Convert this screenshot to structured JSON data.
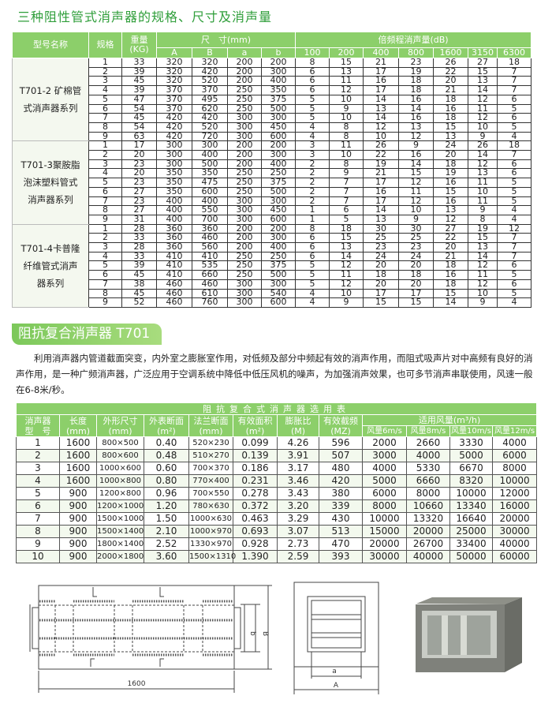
{
  "section1": {
    "title": "三种阻性管式消声器的规格、尺寸及消声量",
    "headers": {
      "model": "型号名称",
      "spec": "规格",
      "weight": "重量",
      "weight_unit": "(KG)",
      "dims": "尺　寸(mm)",
      "dim_cols": [
        "A",
        "B",
        "a",
        "b"
      ],
      "octave": "倍频程消声量(dB)",
      "freq_cols": [
        "100",
        "200",
        "400",
        "800",
        "1600",
        "3150",
        "6300"
      ]
    },
    "groups": [
      {
        "name_lines": [
          "T701-2 矿棉管",
          "式消声器系列"
        ],
        "rows": [
          [
            "1",
            "33",
            "320",
            "320",
            "200",
            "200",
            "8",
            "15",
            "21",
            "23",
            "26",
            "27",
            "18"
          ],
          [
            "2",
            "39",
            "320",
            "420",
            "200",
            "300",
            "6",
            "13",
            "17",
            "19",
            "22",
            "15",
            "7"
          ],
          [
            "3",
            "45",
            "320",
            "520",
            "200",
            "400",
            "6",
            "11",
            "16",
            "18",
            "20",
            "13",
            "7"
          ],
          [
            "4",
            "39",
            "370",
            "370",
            "250",
            "350",
            "6",
            "12",
            "17",
            "18",
            "21",
            "14",
            "7"
          ],
          [
            "5",
            "47",
            "370",
            "495",
            "250",
            "375",
            "5",
            "10",
            "14",
            "16",
            "18",
            "12",
            "6"
          ],
          [
            "6",
            "54",
            "370",
            "620",
            "250",
            "500",
            "5",
            "9",
            "13",
            "14",
            "16",
            "11",
            "5"
          ],
          [
            "7",
            "45",
            "420",
            "420",
            "300",
            "300",
            "5",
            "10",
            "14",
            "16",
            "18",
            "12",
            "6"
          ],
          [
            "8",
            "54",
            "420",
            "520",
            "300",
            "450",
            "4",
            "8",
            "12",
            "13",
            "15",
            "10",
            "5"
          ],
          [
            "9",
            "63",
            "420",
            "720",
            "300",
            "600",
            "4",
            "8",
            "10",
            "12",
            "13",
            "9",
            "4"
          ]
        ]
      },
      {
        "name_lines": [
          "T701-3聚胺脂",
          "泡沫塑料管式",
          "消声器系列"
        ],
        "rows": [
          [
            "1",
            "17",
            "300",
            "300",
            "200",
            "200",
            "3",
            "11",
            "26",
            "9",
            "24",
            "26",
            "18"
          ],
          [
            "2",
            "20",
            "300",
            "400",
            "200",
            "300",
            "3",
            "10",
            "22",
            "16",
            "20",
            "14",
            "7"
          ],
          [
            "3",
            "23",
            "300",
            "500",
            "200",
            "400",
            "2",
            "8",
            "19",
            "14",
            "18",
            "12",
            "6"
          ],
          [
            "4",
            "20",
            "350",
            "350",
            "250",
            "250",
            "2",
            "9",
            "21",
            "15",
            "19",
            "13",
            "6"
          ],
          [
            "5",
            "23",
            "350",
            "475",
            "250",
            "375",
            "2",
            "7",
            "17",
            "12",
            "16",
            "11",
            "5"
          ],
          [
            "6",
            "27",
            "350",
            "600",
            "250",
            "500",
            "2",
            "7",
            "16",
            "11",
            "15",
            "10",
            "5"
          ],
          [
            "7",
            "23",
            "400",
            "400",
            "300",
            "300",
            "2",
            "7",
            "17",
            "12",
            "16",
            "11",
            "5"
          ],
          [
            "8",
            "27",
            "400",
            "550",
            "300",
            "450",
            "1",
            "6",
            "14",
            "10",
            "13",
            "9",
            "4"
          ],
          [
            "9",
            "31",
            "400",
            "700",
            "300",
            "600",
            "1",
            "5",
            "13",
            "9",
            "12",
            "8",
            "4"
          ]
        ]
      },
      {
        "name_lines": [
          "T701-4卡普隆",
          "纤维管式消声",
          "器系列"
        ],
        "rows": [
          [
            "1",
            "28",
            "360",
            "360",
            "200",
            "200",
            "8",
            "18",
            "30",
            "30",
            "27",
            "19",
            "12"
          ],
          [
            "2",
            "33",
            "360",
            "460",
            "200",
            "300",
            "6",
            "15",
            "25",
            "25",
            "22",
            "15",
            "7"
          ],
          [
            "3",
            "28",
            "360",
            "560",
            "200",
            "400",
            "6",
            "13",
            "23",
            "23",
            "20",
            "13",
            "7"
          ],
          [
            "4",
            "33",
            "410",
            "410",
            "250",
            "250",
            "6",
            "14",
            "24",
            "24",
            "21",
            "14",
            "7"
          ],
          [
            "5",
            "39",
            "410",
            "535",
            "250",
            "375",
            "5",
            "12",
            "20",
            "20",
            "18",
            "12",
            "6"
          ],
          [
            "6",
            "45",
            "410",
            "660",
            "250",
            "500",
            "5",
            "11",
            "18",
            "18",
            "16",
            "11",
            "5"
          ],
          [
            "7",
            "38",
            "460",
            "460",
            "300",
            "300",
            "5",
            "12",
            "20",
            "20",
            "18",
            "12",
            "6"
          ],
          [
            "8",
            "45",
            "460",
            "610",
            "300",
            "540",
            "4",
            "10",
            "17",
            "17",
            "15",
            "10",
            "5"
          ],
          [
            "9",
            "52",
            "460",
            "760",
            "300",
            "600",
            "4",
            "9",
            "15",
            "15",
            "14",
            "9",
            "4"
          ]
        ]
      }
    ]
  },
  "section2": {
    "title": "阻抗复合消声器 T701－6",
    "paragraph": "利用消声器内管道截面突变，内外室之膨胀室作用，对低频及部分中频起有效的消声作用，而阻式吸声片对中高频有良好的消声作用，是一种广频消声器，广泛应用于空调系统中降低中低压风机的噪声，为加强消声效果，也可多节消声串联使用，风速一般在6-8米/秒。",
    "table_title": "阻抗复合式消声器选用表",
    "headers": [
      [
        "消声器",
        "型　号"
      ],
      [
        "长度",
        "(mm)"
      ],
      [
        "外形尺寸",
        "(mm)"
      ],
      [
        "外表断面",
        "(m²)"
      ],
      [
        "法兰断面",
        "(mm)"
      ],
      [
        "有效面积",
        "(m²)"
      ],
      [
        "膨胀比",
        "(M)"
      ],
      [
        "有效截频",
        "(MZ)"
      ]
    ],
    "airflow_header": "适用风量(m³/h)",
    "airflow_cols": [
      "风量6m/s",
      "风量8m/s",
      "风量10m/s",
      "风量12m/s"
    ],
    "rows": [
      [
        "1",
        "1600",
        "800×500",
        "0.40",
        "520×230",
        "0.099",
        "4.26",
        "596",
        "2000",
        "2660",
        "3330",
        "4000"
      ],
      [
        "2",
        "1600",
        "800×600",
        "0.48",
        "510×270",
        "0.139",
        "3.91",
        "507",
        "3000",
        "4000",
        "5000",
        "6000"
      ],
      [
        "3",
        "1600",
        "1000×600",
        "0.60",
        "700×370",
        "0.186",
        "3.17",
        "480",
        "4000",
        "5330",
        "6670",
        "8000"
      ],
      [
        "4",
        "1600",
        "1000×800",
        "0.80",
        "770×400",
        "0.231",
        "3.46",
        "420",
        "5000",
        "6660",
        "8320",
        "10000"
      ],
      [
        "5",
        "900",
        "1200×800",
        "0.96",
        "700×550",
        "0.278",
        "3.43",
        "380",
        "6000",
        "8000",
        "10000",
        "12000"
      ],
      [
        "6",
        "900",
        "1200×1000",
        "1.20",
        "780×630",
        "0.372",
        "3.20",
        "339",
        "8000",
        "10660",
        "13340",
        "16000"
      ],
      [
        "7",
        "900",
        "1500×1000",
        "1.50",
        "1000×630",
        "0.463",
        "3.29",
        "430",
        "10000",
        "13320",
        "16640",
        "20000"
      ],
      [
        "8",
        "900",
        "1500×1400",
        "2.10",
        "1000×970",
        "0.693",
        "3.07",
        "513",
        "15000",
        "20000",
        "25000",
        "30000"
      ],
      [
        "9",
        "900",
        "1800×1400",
        "2.52",
        "1330×970",
        "0.928",
        "2.73",
        "470",
        "20000",
        "26700",
        "33400",
        "40000"
      ],
      [
        "10",
        "900",
        "2000×1800",
        "3.60",
        "1500×1310",
        "1.390",
        "2.59",
        "393",
        "30000",
        "40000",
        "50000",
        "60000"
      ]
    ]
  },
  "drawings": {
    "length_label": "1600",
    "b_label": "b",
    "B_label": "B",
    "a_label": "a",
    "A_label": "A"
  },
  "colors": {
    "accent_green": "#8ccf6a",
    "title_green": "#2f9e3a"
  }
}
